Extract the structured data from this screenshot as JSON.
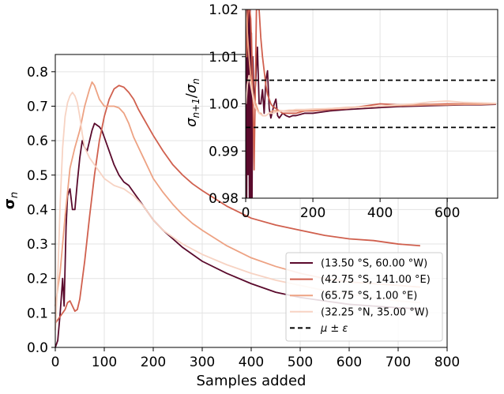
{
  "chart_data": [
    {
      "type": "line",
      "xlabel": "Samples added",
      "ylabel_main": "σ",
      "ylabel_sub": "n",
      "xlim": [
        0,
        800
      ],
      "ylim": [
        0,
        0.85
      ],
      "grid": true,
      "legend_placement": "lower-right",
      "xticks": [
        "0",
        "100",
        "200",
        "300",
        "400",
        "500",
        "600",
        "700",
        "800"
      ],
      "xtick_values": [
        0,
        100,
        200,
        300,
        400,
        500,
        600,
        700,
        800
      ],
      "yticks": [
        "0.0",
        "0.1",
        "0.2",
        "0.3",
        "0.4",
        "0.5",
        "0.6",
        "0.7",
        "0.8"
      ],
      "ytick_values": [
        0,
        0.1,
        0.2,
        0.3,
        0.4,
        0.5,
        0.6,
        0.7,
        0.8
      ],
      "series": [
        {
          "name": "(13.50 °S, 60.00 °W)",
          "color": "#5a0a2c",
          "x": [
            0,
            5,
            10,
            15,
            18,
            22,
            25,
            30,
            35,
            40,
            45,
            50,
            55,
            60,
            65,
            70,
            75,
            80,
            85,
            90,
            95,
            100,
            110,
            120,
            130,
            140,
            150,
            160,
            170,
            180,
            190,
            200,
            220,
            240,
            260,
            280,
            300,
            350,
            400,
            450,
            500,
            550,
            600,
            650,
            700,
            745
          ],
          "y": [
            0,
            0.02,
            0.1,
            0.2,
            0.12,
            0.35,
            0.44,
            0.46,
            0.4,
            0.4,
            0.48,
            0.55,
            0.6,
            0.58,
            0.57,
            0.6,
            0.63,
            0.65,
            0.645,
            0.64,
            0.63,
            0.61,
            0.57,
            0.53,
            0.5,
            0.48,
            0.47,
            0.45,
            0.43,
            0.41,
            0.39,
            0.37,
            0.34,
            0.315,
            0.29,
            0.27,
            0.25,
            0.215,
            0.185,
            0.16,
            0.145,
            0.135,
            0.125,
            0.12,
            0.115,
            0.112
          ]
        },
        {
          "name": "(42.75 °S, 141.00 °E)",
          "color": "#d0604e",
          "x": [
            0,
            10,
            20,
            25,
            30,
            35,
            40,
            45,
            50,
            60,
            70,
            80,
            90,
            100,
            110,
            120,
            130,
            140,
            150,
            160,
            170,
            180,
            190,
            200,
            220,
            240,
            260,
            280,
            300,
            350,
            400,
            450,
            500,
            550,
            600,
            650,
            700,
            745
          ],
          "y": [
            0.07,
            0.09,
            0.11,
            0.13,
            0.135,
            0.12,
            0.105,
            0.11,
            0.14,
            0.25,
            0.38,
            0.5,
            0.6,
            0.67,
            0.72,
            0.75,
            0.76,
            0.755,
            0.74,
            0.72,
            0.69,
            0.665,
            0.64,
            0.615,
            0.57,
            0.53,
            0.5,
            0.475,
            0.455,
            0.41,
            0.375,
            0.355,
            0.34,
            0.325,
            0.315,
            0.31,
            0.3,
            0.295
          ]
        },
        {
          "name": "(65.75 °S, 1.00 °E)",
          "color": "#eda283",
          "x": [
            0,
            10,
            20,
            30,
            40,
            50,
            60,
            70,
            75,
            80,
            90,
            100,
            110,
            120,
            130,
            140,
            150,
            160,
            170,
            180,
            190,
            200,
            220,
            240,
            260,
            280,
            300,
            350,
            400,
            450,
            500,
            550,
            600,
            650,
            700,
            745
          ],
          "y": [
            0.12,
            0.22,
            0.38,
            0.52,
            0.58,
            0.63,
            0.7,
            0.75,
            0.77,
            0.76,
            0.72,
            0.7,
            0.7,
            0.7,
            0.695,
            0.68,
            0.65,
            0.61,
            0.58,
            0.55,
            0.52,
            0.49,
            0.45,
            0.415,
            0.385,
            0.36,
            0.34,
            0.295,
            0.26,
            0.235,
            0.215,
            0.2,
            0.19,
            0.185,
            0.18,
            0.175
          ]
        },
        {
          "name": "(32.25 °N, 35.00 °W)",
          "color": "#f7d3c3",
          "x": [
            0,
            5,
            10,
            15,
            20,
            25,
            30,
            35,
            40,
            45,
            50,
            55,
            60,
            70,
            80,
            90,
            100,
            110,
            120,
            130,
            140,
            150,
            160,
            170,
            180,
            190,
            200,
            220,
            240,
            260,
            280,
            300,
            350,
            400,
            450,
            500,
            550,
            600,
            650,
            700,
            745
          ],
          "y": [
            0.05,
            0.2,
            0.42,
            0.58,
            0.67,
            0.71,
            0.73,
            0.74,
            0.73,
            0.71,
            0.67,
            0.62,
            0.58,
            0.55,
            0.53,
            0.51,
            0.49,
            0.48,
            0.47,
            0.465,
            0.46,
            0.45,
            0.44,
            0.425,
            0.41,
            0.39,
            0.37,
            0.34,
            0.32,
            0.3,
            0.285,
            0.27,
            0.24,
            0.215,
            0.195,
            0.18,
            0.165,
            0.155,
            0.145,
            0.135,
            0.13
          ]
        }
      ]
    },
    {
      "type": "line",
      "xlabel": "",
      "ylabel": "σn+1/σn",
      "ylabel_parts": {
        "sym1": "σ",
        "sub1": "n+1",
        "slash": "/",
        "sym2": "σ",
        "sub2": "n"
      },
      "xlim": [
        0,
        750
      ],
      "ylim": [
        0.98,
        1.02
      ],
      "grid": true,
      "xticks": [
        "0",
        "200",
        "400",
        "600"
      ],
      "xtick_values": [
        0,
        200,
        400,
        600
      ],
      "yticks": [
        "0.98",
        "0.99",
        "1.00",
        "1.01",
        "1.02"
      ],
      "ytick_values": [
        0.98,
        0.99,
        1.0,
        1.01,
        1.02
      ],
      "reference_lines": {
        "name": "μ ± ε",
        "values": [
          1.005,
          0.995
        ],
        "color": "#000000"
      },
      "series": [
        {
          "name": "(13.50 °S, 60.00 °W)",
          "color": "#5a0a2c",
          "x": [
            1,
            3,
            5,
            7,
            9,
            11,
            13,
            15,
            17,
            19,
            21,
            25,
            30,
            35,
            40,
            45,
            50,
            55,
            60,
            65,
            70,
            75,
            80,
            85,
            90,
            95,
            100,
            110,
            120,
            130,
            140,
            150,
            175,
            200,
            250,
            300,
            350,
            400,
            450,
            500,
            550,
            600,
            650,
            700,
            745
          ],
          "y": [
            1.02,
            0.98,
            1.02,
            0.985,
            1.02,
            0.98,
            1.02,
            0.98,
            1.015,
            0.98,
            1.01,
            1.0,
            1.005,
            1.012,
            1.0,
            1.0,
            1.003,
            0.998,
            1.005,
            1.007,
            0.999,
            0.997,
            0.9985,
            1.0,
            1.001,
            0.9975,
            0.997,
            0.998,
            0.9975,
            0.9972,
            0.9975,
            0.9975,
            0.998,
            0.998,
            0.9985,
            0.9988,
            0.999,
            0.9992,
            0.9994,
            0.9995,
            0.9996,
            0.9997,
            0.9998,
            0.9998,
            0.9999
          ]
        },
        {
          "name": "(42.75 °S, 141.00 °E)",
          "color": "#d0604e",
          "x": [
            1,
            3,
            5,
            8,
            12,
            15,
            18,
            22,
            25,
            28,
            32,
            35,
            40,
            45,
            50,
            55,
            60,
            65,
            70,
            75,
            80,
            90,
            100,
            110,
            120,
            130,
            140,
            150,
            175,
            200,
            250,
            300,
            350,
            400,
            450,
            500,
            550,
            600,
            650,
            700,
            745
          ],
          "y": [
            1.02,
            1.01,
            1.017,
            1.02,
            1.02,
            1.018,
            1.012,
            1.0,
            0.986,
            1.0,
            1.02,
            1.02,
            1.02,
            1.014,
            1.01,
            1.007,
            1.004,
            1.002,
            1.001,
            1.0,
            0.9995,
            0.999,
            0.9985,
            0.998,
            0.998,
            0.998,
            0.998,
            0.998,
            0.9985,
            0.9985,
            0.9988,
            0.999,
            0.9995,
            1.0,
            0.9998,
            0.9998,
            0.9999,
            1.0,
            1.0,
            1.0,
            1.0
          ]
        },
        {
          "name": "(65.75 °S, 1.00 °E)",
          "color": "#eda283",
          "x": [
            1,
            5,
            10,
            15,
            20,
            25,
            30,
            35,
            40,
            45,
            50,
            60,
            70,
            80,
            90,
            100,
            110,
            120,
            130,
            140,
            150,
            175,
            200,
            250,
            300,
            350,
            400,
            450,
            500,
            550,
            600,
            650,
            700,
            745
          ],
          "y": [
            1.02,
            1.015,
            1.01,
            1.006,
            1.003,
            1.001,
            1.0,
            0.999,
            0.998,
            0.998,
            0.9975,
            0.9975,
            0.998,
            0.9985,
            0.9985,
            0.9985,
            0.9985,
            0.9985,
            0.9985,
            0.9985,
            0.9985,
            0.9986,
            0.9987,
            0.999,
            0.9992,
            0.9994,
            0.9995,
            0.9996,
            0.9997,
            0.9998,
            0.9998,
            0.9999,
            0.9999,
            1.0
          ]
        },
        {
          "name": "(32.25 °N, 35.00 °W)",
          "color": "#f7d3c3",
          "x": [
            1,
            5,
            10,
            15,
            20,
            25,
            30,
            40,
            50,
            60,
            70,
            80,
            90,
            100,
            110,
            120,
            130,
            140,
            150,
            175,
            200,
            250,
            300,
            350,
            400,
            450,
            500,
            550,
            600,
            650,
            700,
            745
          ],
          "y": [
            1.0,
            1.004,
            1.006,
            1.004,
            1.002,
            1.0,
            0.999,
            0.998,
            0.9975,
            0.9975,
            0.998,
            0.998,
            0.9982,
            0.9984,
            0.9985,
            0.9986,
            0.9987,
            0.9987,
            0.9988,
            0.9988,
            0.9989,
            0.999,
            0.9991,
            0.9993,
            0.9995,
            0.9998,
            1.0,
            1.0004,
            1.0006,
            1.0003,
            1.0002,
            1.0001
          ]
        }
      ]
    }
  ]
}
